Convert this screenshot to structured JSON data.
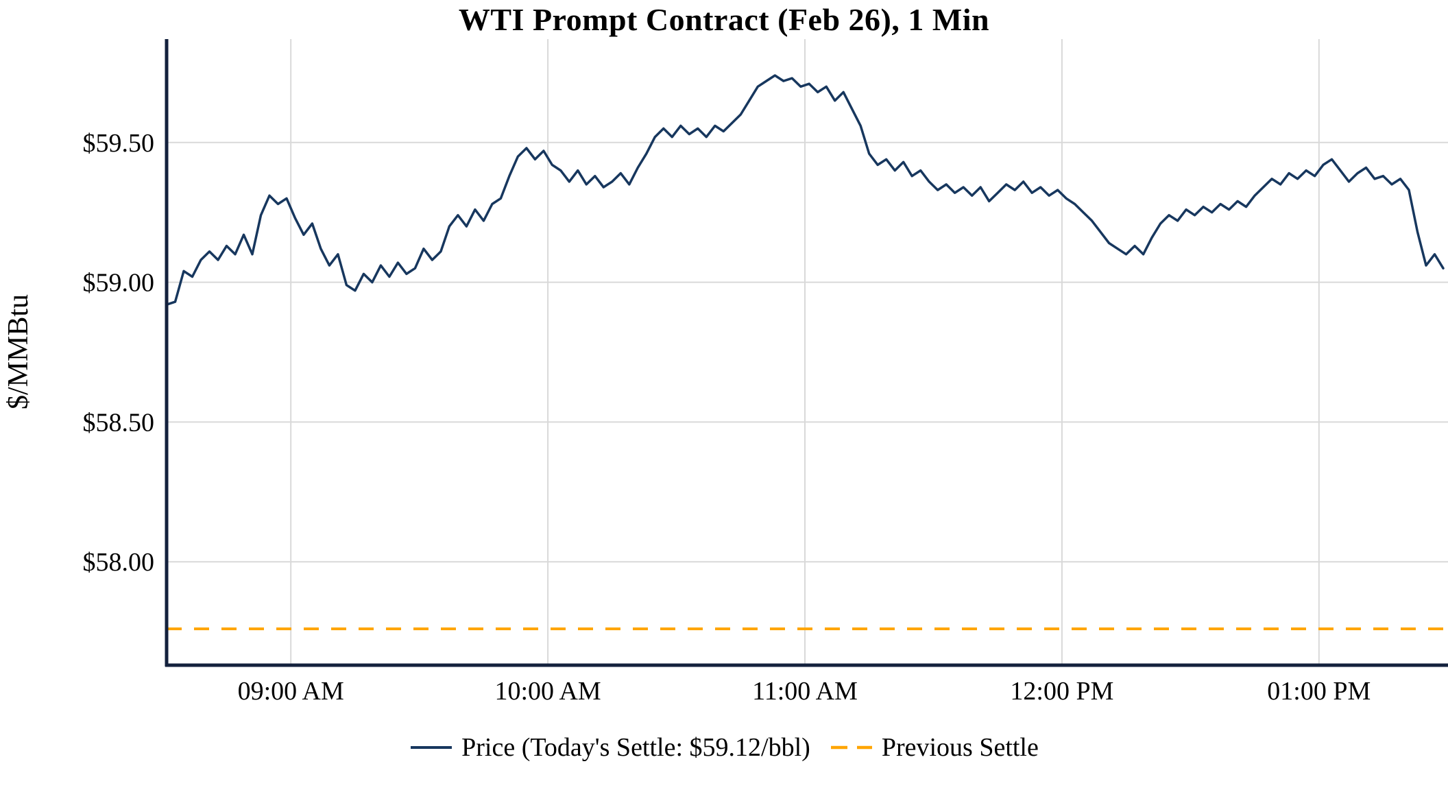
{
  "page": {
    "background": "#ffffff"
  },
  "chart_data": {
    "type": "line",
    "title": "WTI Prompt Contract (Feb 26), 1 Min",
    "xlabel": "",
    "ylabel": "$/MMBtu",
    "x_tick_labels": [
      "09:00 AM",
      "10:00 AM",
      "11:00 AM",
      "12:00 PM",
      "01:00 PM"
    ],
    "x_tick_minutes": [
      540,
      600,
      660,
      720,
      780
    ],
    "x_range_minutes": [
      511,
      809
    ],
    "y_ticks": [
      58.0,
      58.5,
      59.0,
      59.5
    ],
    "y_tick_labels": [
      "$58.00",
      "$58.50",
      "$59.00",
      "$59.50"
    ],
    "ylim": [
      57.63,
      59.87
    ],
    "grid": true,
    "legend_position": "bottom",
    "today_settle": 59.12,
    "colors": {
      "price_line": "#17375e",
      "previous_settle": "#ffa500",
      "grid": "#d9d9d9",
      "axis": "#14213d",
      "text": "#000000"
    },
    "series": [
      {
        "name": "Price (Today's Settle: $59.12/bbl)",
        "type": "line",
        "style": "solid",
        "color": "#17375e",
        "times": [
          "08:31",
          "08:33",
          "08:35",
          "08:37",
          "08:39",
          "08:41",
          "08:43",
          "08:45",
          "08:47",
          "08:49",
          "08:51",
          "08:53",
          "08:55",
          "08:57",
          "08:59",
          "09:01",
          "09:03",
          "09:05",
          "09:07",
          "09:09",
          "09:11",
          "09:13",
          "09:15",
          "09:17",
          "09:19",
          "09:21",
          "09:23",
          "09:25",
          "09:27",
          "09:29",
          "09:31",
          "09:33",
          "09:35",
          "09:37",
          "09:39",
          "09:41",
          "09:43",
          "09:45",
          "09:47",
          "09:49",
          "09:51",
          "09:53",
          "09:55",
          "09:57",
          "09:59",
          "10:01",
          "10:03",
          "10:05",
          "10:07",
          "10:09",
          "10:11",
          "10:13",
          "10:15",
          "10:17",
          "10:19",
          "10:21",
          "10:23",
          "10:25",
          "10:27",
          "10:29",
          "10:31",
          "10:33",
          "10:35",
          "10:37",
          "10:39",
          "10:41",
          "10:43",
          "10:45",
          "10:47",
          "10:49",
          "10:51",
          "10:53",
          "10:55",
          "10:57",
          "10:59",
          "11:01",
          "11:03",
          "11:05",
          "11:07",
          "11:09",
          "11:11",
          "11:13",
          "11:15",
          "11:17",
          "11:19",
          "11:21",
          "11:23",
          "11:25",
          "11:27",
          "11:29",
          "11:31",
          "11:33",
          "11:35",
          "11:37",
          "11:39",
          "11:41",
          "11:43",
          "11:45",
          "11:47",
          "11:49",
          "11:51",
          "11:53",
          "11:55",
          "11:57",
          "11:59",
          "12:01",
          "12:03",
          "12:05",
          "12:07",
          "12:09",
          "12:11",
          "12:13",
          "12:15",
          "12:17",
          "12:19",
          "12:21",
          "12:23",
          "12:25",
          "12:27",
          "12:29",
          "12:31",
          "12:33",
          "12:35",
          "12:37",
          "12:39",
          "12:41",
          "12:43",
          "12:45",
          "12:47",
          "12:49",
          "12:51",
          "12:53",
          "12:55",
          "12:57",
          "12:59",
          "13:01",
          "13:03",
          "13:05",
          "13:07",
          "13:09",
          "13:11",
          "13:13",
          "13:15",
          "13:17",
          "13:19",
          "13:21",
          "13:23",
          "13:25",
          "13:27",
          "13:29"
        ],
        "values": [
          58.92,
          58.93,
          59.04,
          59.02,
          59.08,
          59.11,
          59.08,
          59.13,
          59.1,
          59.17,
          59.1,
          59.24,
          59.31,
          59.28,
          59.3,
          59.23,
          59.17,
          59.21,
          59.12,
          59.06,
          59.1,
          58.99,
          58.97,
          59.03,
          59.0,
          59.06,
          59.02,
          59.07,
          59.03,
          59.05,
          59.12,
          59.08,
          59.11,
          59.2,
          59.24,
          59.2,
          59.26,
          59.22,
          59.28,
          59.3,
          59.38,
          59.45,
          59.48,
          59.44,
          59.47,
          59.42,
          59.4,
          59.36,
          59.4,
          59.35,
          59.38,
          59.34,
          59.36,
          59.39,
          59.35,
          59.41,
          59.46,
          59.52,
          59.55,
          59.52,
          59.56,
          59.53,
          59.55,
          59.52,
          59.56,
          59.54,
          59.57,
          59.6,
          59.65,
          59.7,
          59.72,
          59.74,
          59.72,
          59.73,
          59.7,
          59.71,
          59.68,
          59.7,
          59.65,
          59.68,
          59.62,
          59.56,
          59.46,
          59.42,
          59.44,
          59.4,
          59.43,
          59.38,
          59.4,
          59.36,
          59.33,
          59.35,
          59.32,
          59.34,
          59.31,
          59.34,
          59.29,
          59.32,
          59.35,
          59.33,
          59.36,
          59.32,
          59.34,
          59.31,
          59.33,
          59.3,
          59.28,
          59.25,
          59.22,
          59.18,
          59.14,
          59.12,
          59.1,
          59.13,
          59.1,
          59.16,
          59.21,
          59.24,
          59.22,
          59.26,
          59.24,
          59.27,
          59.25,
          59.28,
          59.26,
          59.29,
          59.27,
          59.31,
          59.34,
          59.37,
          59.35,
          59.39,
          59.37,
          59.4,
          59.38,
          59.42,
          59.44,
          59.4,
          59.36,
          59.39,
          59.41,
          59.37,
          59.38,
          59.35,
          59.37,
          59.33,
          59.18,
          59.06,
          59.1,
          59.05
        ]
      },
      {
        "name": "Previous Settle",
        "type": "hline",
        "style": "dashed",
        "color": "#ffa500",
        "value": 57.76
      }
    ]
  }
}
